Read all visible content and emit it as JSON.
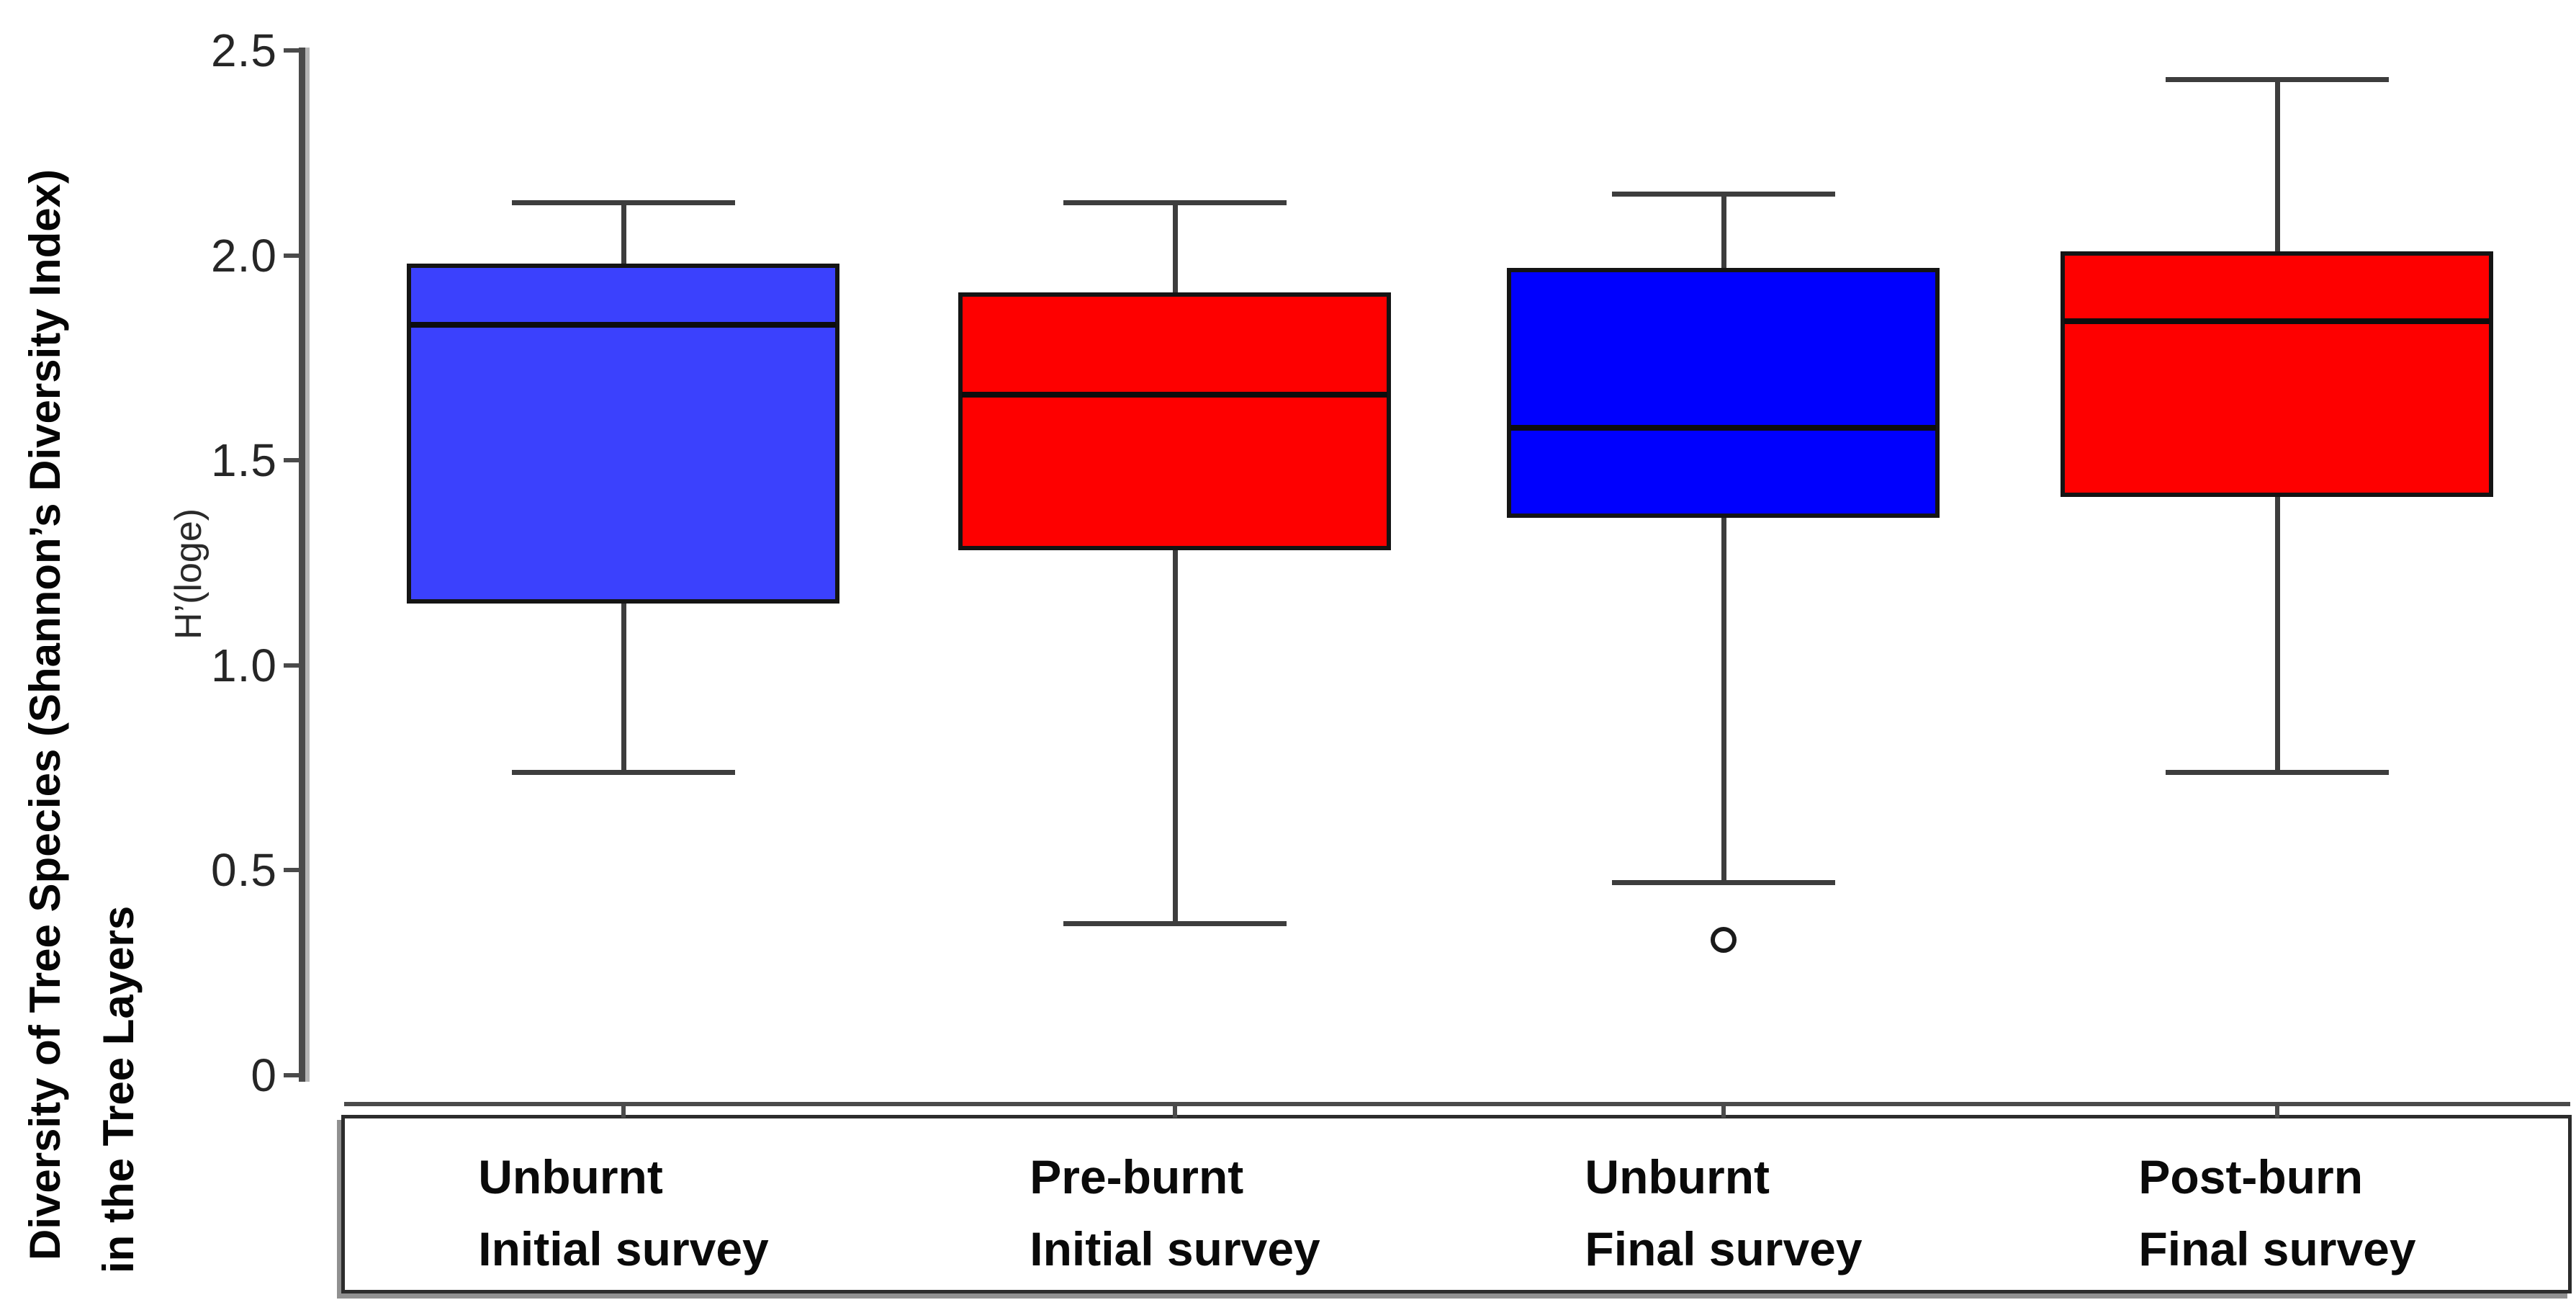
{
  "chart_data": {
    "type": "boxplot",
    "title": "",
    "ylabel_line1": "Diversity of Tree Species (Shannon’s Diversity Index)",
    "ylabel_line2": "in the Tree Layers",
    "y_unit_label": "H’(loge)",
    "ylim": [
      0,
      2.5
    ],
    "yticks": [
      0,
      0.5,
      1.0,
      1.5,
      2.0,
      2.5
    ],
    "ytick_labels": [
      "0",
      "0.5",
      "1.0",
      "1.5",
      "2.0",
      "2.5"
    ],
    "grid": false,
    "legend": "none",
    "categories": [
      "Unburnt Initial survey",
      "Pre-burnt Initial survey",
      "Unburnt Final survey",
      "Post-burn Final survey"
    ],
    "series": [
      {
        "label_line1": "Unburnt",
        "label_line2": "Initial survey",
        "whisker_low": 0.74,
        "q1": 1.15,
        "median": 1.83,
        "q3": 1.98,
        "whisker_high": 2.13,
        "outliers": [],
        "fill": "#3b41fd"
      },
      {
        "label_line1": "Pre-burnt",
        "label_line2": "Initial survey",
        "whisker_low": 0.37,
        "q1": 1.28,
        "median": 1.66,
        "q3": 1.91,
        "whisker_high": 2.13,
        "outliers": [],
        "fill": "#fe0000"
      },
      {
        "label_line1": "Unburnt",
        "label_line2": "Final survey",
        "whisker_low": 0.47,
        "q1": 1.36,
        "median": 1.58,
        "q3": 1.97,
        "whisker_high": 2.15,
        "outliers": [
          0.33
        ],
        "fill": "#0000fe"
      },
      {
        "label_line1": "Post-burn",
        "label_line2": "Final survey",
        "whisker_low": 0.74,
        "q1": 1.41,
        "median": 1.84,
        "q3": 2.01,
        "whisker_high": 2.43,
        "outliers": [],
        "fill": "#fe0000"
      }
    ],
    "colors": {
      "background": "#ffffff",
      "box_border": "#141414",
      "median_line": "#0d0d0d",
      "whisker": "#3d3d3d",
      "axis": "#4a4a4a",
      "tick_label": "#262626",
      "category_label": "#0a0a0a",
      "blue_light": "#3b41fd",
      "blue_dark": "#0000fe",
      "red": "#fe0000"
    }
  }
}
